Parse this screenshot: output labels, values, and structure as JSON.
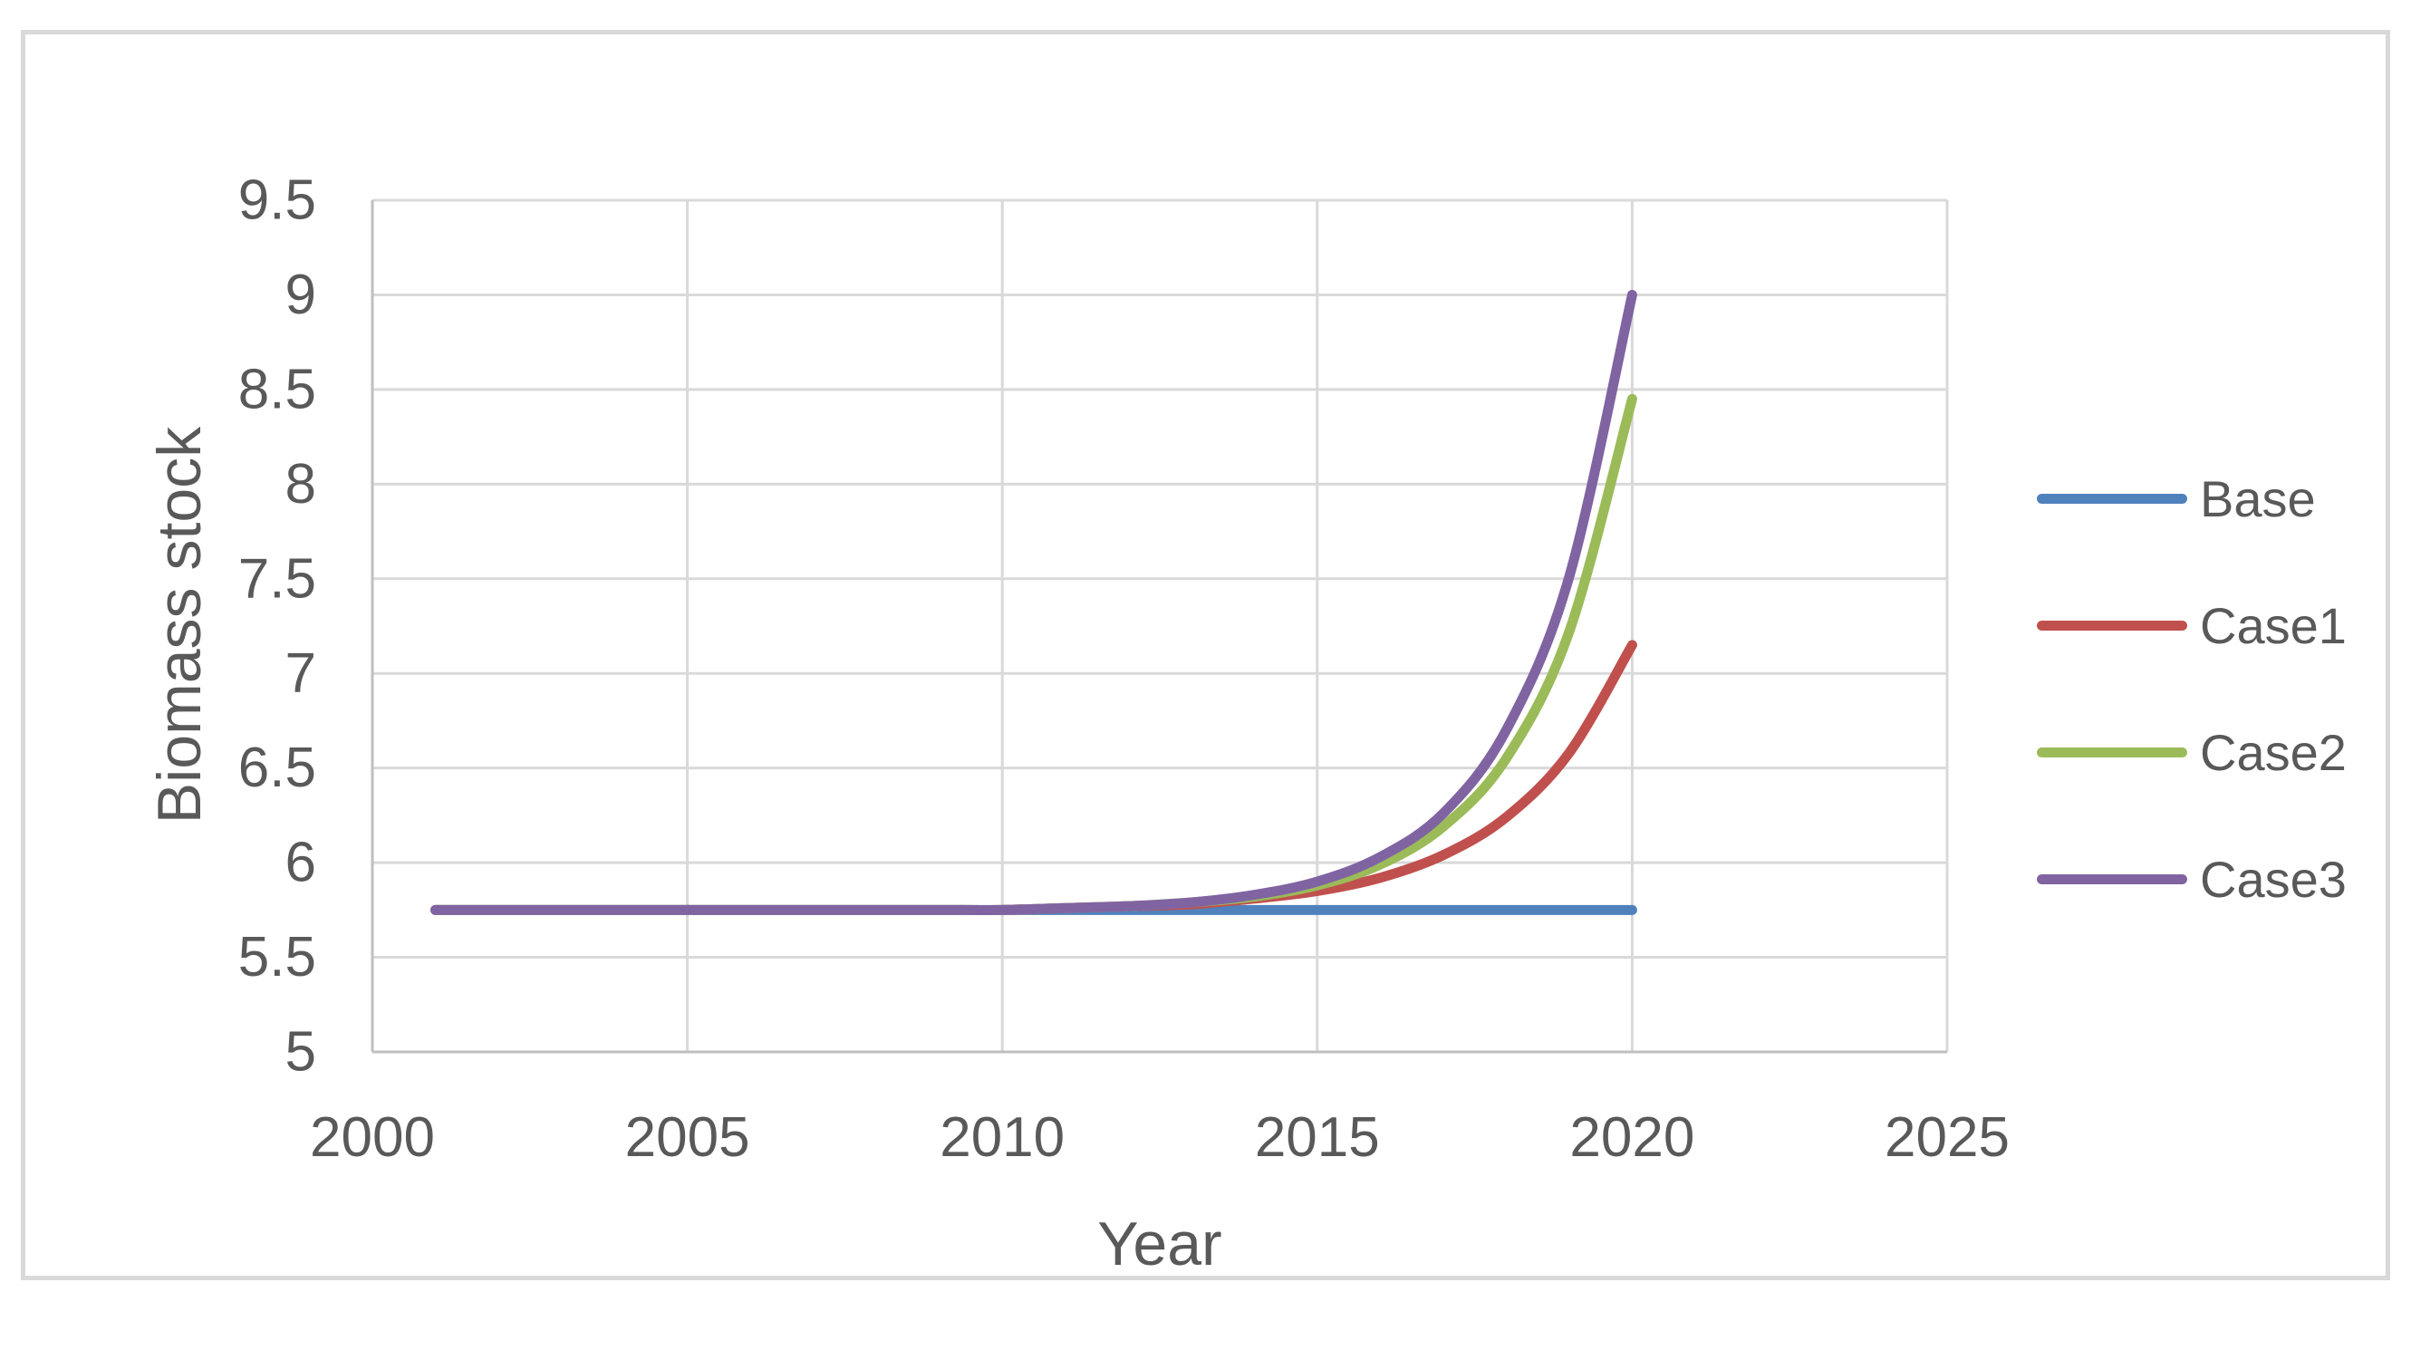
{
  "chart_data": {
    "type": "line",
    "title": "",
    "xlabel": "Year",
    "ylabel": "Biomass stock",
    "xlim": [
      2000,
      2025
    ],
    "ylim": [
      5,
      9.5
    ],
    "x_ticks": [
      2000,
      2005,
      2010,
      2015,
      2020,
      2025
    ],
    "y_ticks": [
      5,
      5.5,
      6,
      6.5,
      7,
      7.5,
      8,
      8.5,
      9,
      9.5
    ],
    "grid": true,
    "legend_position": "right",
    "x": [
      2001,
      2002,
      2003,
      2004,
      2005,
      2006,
      2007,
      2008,
      2009,
      2010,
      2011,
      2012,
      2013,
      2014,
      2015,
      2016,
      2017,
      2018,
      2019,
      2020
    ],
    "series": [
      {
        "name": "Base",
        "color": "#4F81BD",
        "values": [
          5.75,
          5.75,
          5.75,
          5.75,
          5.75,
          5.75,
          5.75,
          5.75,
          5.75,
          5.75,
          5.75,
          5.75,
          5.75,
          5.75,
          5.75,
          5.75,
          5.75,
          5.75,
          5.75,
          5.75
        ]
      },
      {
        "name": "Case1",
        "color": "#C0504D",
        "values": [
          5.75,
          5.75,
          5.75,
          5.75,
          5.75,
          5.75,
          5.75,
          5.75,
          5.75,
          5.75,
          5.76,
          5.77,
          5.78,
          5.81,
          5.85,
          5.92,
          6.04,
          6.24,
          6.58,
          7.15
        ]
      },
      {
        "name": "Case2",
        "color": "#9BBB59",
        "values": [
          5.75,
          5.75,
          5.75,
          5.75,
          5.75,
          5.75,
          5.75,
          5.75,
          5.75,
          5.75,
          5.76,
          5.77,
          5.79,
          5.82,
          5.88,
          5.99,
          6.19,
          6.55,
          7.22,
          8.45
        ]
      },
      {
        "name": "Case3",
        "color": "#8064A2",
        "values": [
          5.75,
          5.75,
          5.75,
          5.75,
          5.75,
          5.75,
          5.75,
          5.75,
          5.75,
          5.75,
          5.76,
          5.77,
          5.79,
          5.83,
          5.9,
          6.03,
          6.26,
          6.7,
          7.51,
          9.0
        ]
      }
    ]
  },
  "styles": {
    "figure_border_color": "#D9D9D9",
    "background_color": "#FFFFFF",
    "gridline_color": "#D9D9D9",
    "axis_line_color": "#BFBFBF",
    "text_color": "#595959"
  }
}
